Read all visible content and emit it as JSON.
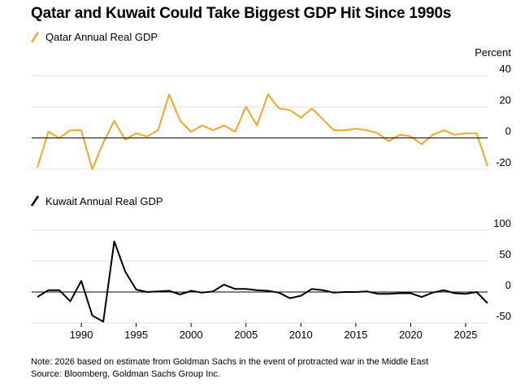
{
  "title": "Qatar and Kuwait Could Take Biggest GDP Hit Since 1990s",
  "unit_label": "Percent",
  "note": "Note: 2026 based on estimate from Goldman Sachs in the event of protracted war in the Middle East",
  "source": "Source: Bloomberg, Goldman Sachs Group Inc.",
  "colors": {
    "qatar": "#f5a623",
    "kuwait": "#000000",
    "grid": "#e0e0e0",
    "zero": "#000000"
  },
  "chart_data": [
    {
      "type": "line",
      "series": [
        {
          "name": "Qatar Annual Real GDP",
          "x": [
            1986,
            1987,
            1988,
            1989,
            1990,
            1991,
            1992,
            1993,
            1994,
            1995,
            1996,
            1997,
            1998,
            1999,
            2000,
            2001,
            2002,
            2003,
            2004,
            2005,
            2006,
            2007,
            2008,
            2009,
            2010,
            2011,
            2012,
            2013,
            2014,
            2015,
            2016,
            2017,
            2018,
            2019,
            2020,
            2021,
            2022,
            2023,
            2024,
            2025,
            2026,
            2027
          ],
          "values": [
            -19,
            4,
            0,
            5,
            5,
            -20,
            -3,
            11,
            -1,
            3,
            1,
            5,
            28,
            11,
            4,
            8,
            5,
            8,
            4,
            20,
            8,
            28,
            19,
            18,
            13,
            19,
            12,
            5,
            5,
            6,
            5,
            3,
            -2,
            2,
            1,
            -4,
            2,
            5,
            2,
            3,
            3,
            -18
          ]
        }
      ],
      "ylim": [
        -20,
        40
      ],
      "yticks": [
        -20,
        0,
        20,
        40
      ],
      "xlim": [
        1986,
        2027
      ],
      "grid": true
    },
    {
      "type": "line",
      "series": [
        {
          "name": "Kuwait Annual Real GDP",
          "x": [
            1986,
            1987,
            1988,
            1989,
            1990,
            1991,
            1992,
            1993,
            1994,
            1995,
            1996,
            1997,
            1998,
            1999,
            2000,
            2001,
            2002,
            2003,
            2004,
            2005,
            2006,
            2007,
            2008,
            2009,
            2010,
            2011,
            2012,
            2013,
            2014,
            2015,
            2016,
            2017,
            2018,
            2019,
            2020,
            2021,
            2022,
            2023,
            2024,
            2025,
            2026,
            2027
          ],
          "values": [
            -8,
            3,
            3,
            -15,
            18,
            -38,
            -48,
            82,
            33,
            4,
            0,
            1,
            2,
            -4,
            2,
            -1,
            1,
            12,
            5,
            5,
            3,
            2,
            -1,
            -10,
            -6,
            5,
            3,
            -1,
            0,
            0,
            1,
            -3,
            -3,
            -2,
            -2,
            -8,
            -1,
            3,
            -2,
            -3,
            0,
            -18
          ]
        }
      ],
      "ylim": [
        -50,
        100
      ],
      "yticks": [
        -50,
        0,
        50,
        100
      ],
      "xlim": [
        1986,
        2027
      ],
      "xticks": [
        1990,
        1995,
        2000,
        2005,
        2010,
        2015,
        2020,
        2025
      ],
      "grid": true
    }
  ]
}
